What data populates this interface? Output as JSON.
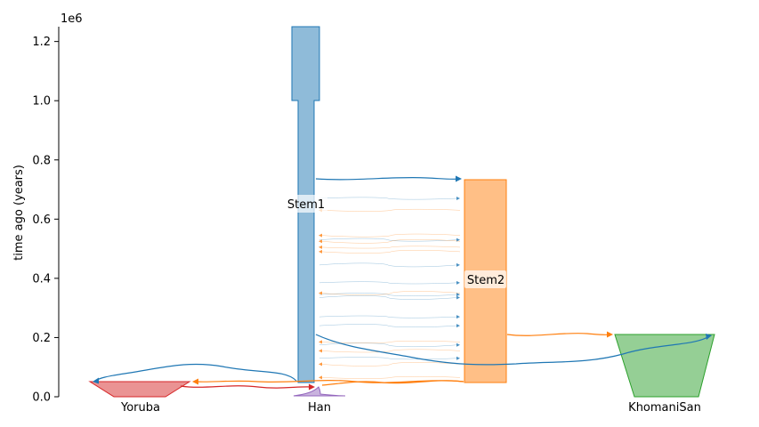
{
  "chart_data": {
    "type": "demography",
    "ylabel": "time ago (years)",
    "y_scale_label": "1e6",
    "ylim": [
      0,
      1250000
    ],
    "yticks": [
      {
        "value": 0,
        "label": "0.0"
      },
      {
        "value": 200000,
        "label": "0.2"
      },
      {
        "value": 400000,
        "label": "0.4"
      },
      {
        "value": 600000,
        "label": "0.6"
      },
      {
        "value": 800000,
        "label": "0.8"
      },
      {
        "value": 1000000,
        "label": "1.0"
      },
      {
        "value": 1200000,
        "label": "1.2"
      }
    ],
    "demes": [
      {
        "name": "Stem1",
        "label": "Stem1",
        "color": "#1f77b4",
        "show_bottom_label": false,
        "mid_label_time": 650000
      },
      {
        "name": "Stem2",
        "label": "Stem2",
        "color": "#ff7f0e",
        "show_bottom_label": false,
        "mid_label_time": 395000
      },
      {
        "name": "KhomaniSan",
        "label": "KhomaniSan",
        "color": "#2ca02c",
        "show_bottom_label": true
      },
      {
        "name": "Yoruba",
        "label": "Yoruba",
        "color": "#d62728",
        "show_bottom_label": true
      },
      {
        "name": "Han",
        "label": "Han",
        "color": "#9467bd",
        "show_bottom_label": true
      }
    ],
    "splits": [
      {
        "from": "Stem1",
        "to": "Stem2",
        "time": 740000
      },
      {
        "from": "Stem2",
        "to": "KhomaniSan",
        "time": 210000
      },
      {
        "from": "Stem1",
        "to": "KhomaniSan",
        "time": 210000
      },
      {
        "from": "Stem1",
        "to": "Yoruba",
        "time": 55000
      },
      {
        "from": "Stem2",
        "to": "Yoruba",
        "time": 55000
      },
      {
        "from": "Stem2",
        "to": "Han",
        "time": 55000
      },
      {
        "from": "Yoruba",
        "to": "Han",
        "time": 35000
      }
    ],
    "migrations_stem1_to_stem2": [
      670000,
      530000,
      445000,
      385000,
      345000,
      335000,
      270000,
      240000,
      175000,
      130000
    ],
    "migrations_stem2_to_stem1": [
      630000,
      545000,
      525000,
      505000,
      490000,
      350000,
      185000,
      155000,
      110000,
      65000
    ]
  }
}
